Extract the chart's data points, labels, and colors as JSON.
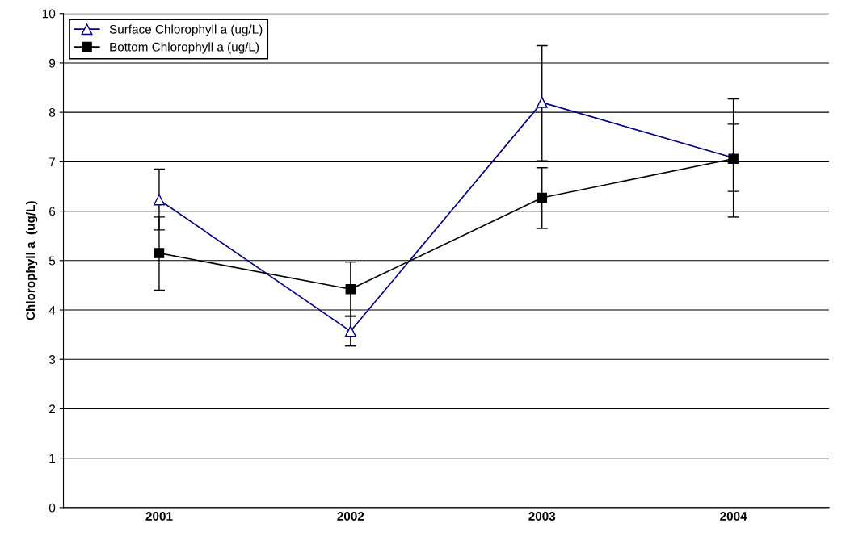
{
  "chart_data": {
    "type": "line",
    "ylabel": "Chlorophyll a  (ug/L)",
    "categories": [
      "2001",
      "2002",
      "2003",
      "2004"
    ],
    "series": [
      {
        "name": "Surface Chlorophyll a (ug/L)",
        "color": "#000080",
        "marker": "triangle",
        "values": [
          6.23,
          3.57,
          8.2,
          7.08
        ],
        "errors": [
          [
            5.62,
            6.85
          ],
          [
            3.27,
            3.88
          ],
          [
            7.02,
            9.35
          ],
          [
            5.88,
            8.27
          ]
        ]
      },
      {
        "name": "Bottom Chlorophyll a (ug/L)",
        "color": "#000000",
        "marker": "square",
        "values": [
          5.15,
          4.42,
          6.27,
          7.06
        ],
        "errors": [
          [
            4.4,
            5.88
          ],
          [
            3.87,
            4.97
          ],
          [
            5.65,
            6.88
          ],
          [
            6.4,
            7.76
          ]
        ]
      }
    ],
    "ylim": [
      0,
      10
    ],
    "yticks": [
      0,
      1,
      2,
      3,
      4,
      5,
      6,
      7,
      8,
      9,
      10
    ],
    "grid": "y",
    "legend": "top left"
  }
}
